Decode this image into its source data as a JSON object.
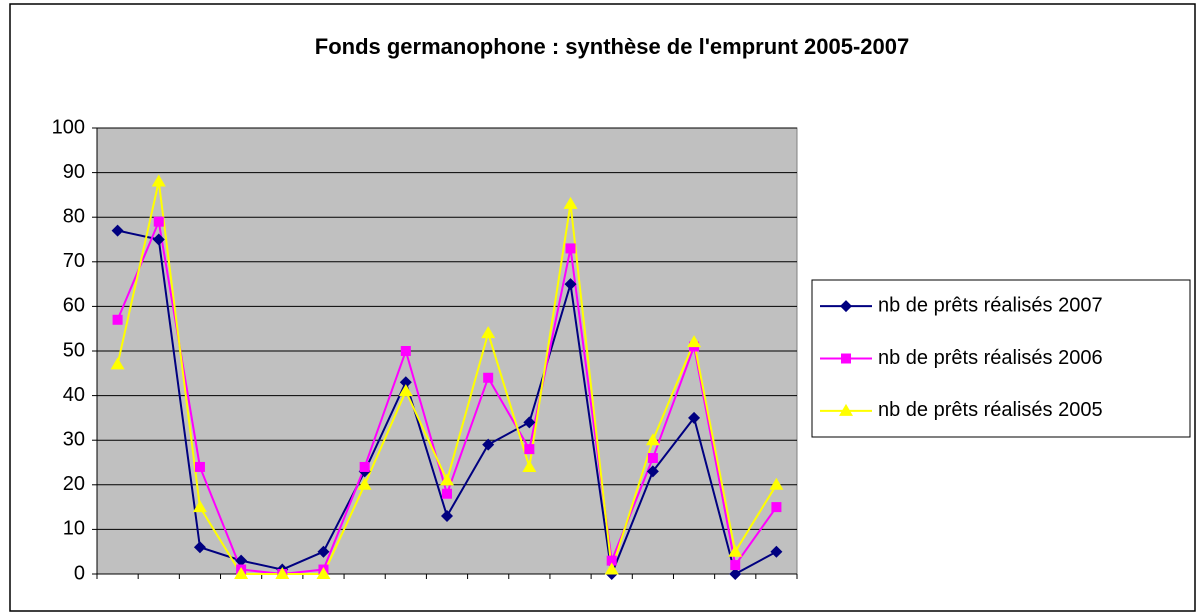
{
  "chart_data": {
    "type": "line",
    "title": "Fonds germanophone : synthèse de l'emprunt 2005-2007",
    "categories": [
      null,
      null,
      null,
      null,
      null,
      null,
      null,
      null,
      null,
      null,
      null,
      null,
      null,
      null,
      null,
      null,
      null
    ],
    "series": [
      {
        "name": "nb de prêts réalisés 2007",
        "color": "#000080",
        "marker": "diamond",
        "values": [
          77,
          75,
          6,
          3,
          1,
          5,
          23,
          43,
          13,
          29,
          34,
          65,
          0,
          23,
          35,
          0,
          5
        ]
      },
      {
        "name": "nb de prêts réalisés 2006",
        "color": "#ff00ff",
        "marker": "square",
        "values": [
          57,
          79,
          24,
          1,
          0,
          1,
          24,
          50,
          18,
          44,
          28,
          73,
          3,
          26,
          51,
          2,
          15
        ]
      },
      {
        "name": "nb de prêts réalisés 2005",
        "color": "#ffff00",
        "marker": "triangle",
        "values": [
          47,
          88,
          15,
          0,
          0,
          0,
          20,
          41,
          21,
          54,
          24,
          83,
          1,
          30,
          52,
          5,
          20
        ]
      }
    ],
    "ylim": [
      0,
      100
    ],
    "yticks": [
      0,
      10,
      20,
      30,
      40,
      50,
      60,
      70,
      80,
      90,
      100
    ],
    "grid": true,
    "legend": "right"
  }
}
